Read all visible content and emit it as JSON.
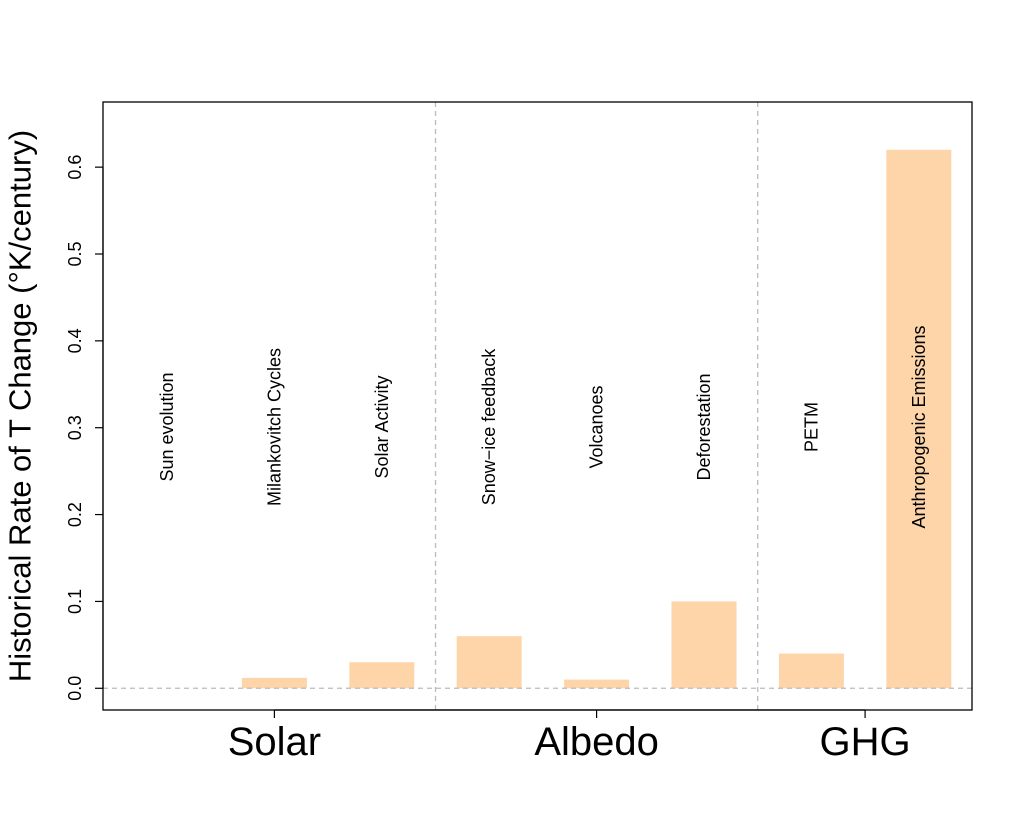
{
  "chart_data": {
    "type": "bar",
    "title": "",
    "xlabel": "",
    "ylabel": "Historical Rate of T Change (°K/century)",
    "ylim": [
      -0.025,
      0.675
    ],
    "yticks": [
      0.0,
      0.1,
      0.2,
      0.3,
      0.4,
      0.5,
      0.6
    ],
    "ytick_labels": [
      "0.0",
      "0.1",
      "0.2",
      "0.3",
      "0.4",
      "0.5",
      "0.6"
    ],
    "grid": false,
    "groups": [
      {
        "label": "Solar",
        "categories": [
          "Sun evolution",
          "Milankovitch Cycles",
          "Solar Activity"
        ]
      },
      {
        "label": "Albedo",
        "categories": [
          "Snow−ice feedback",
          "Volcanoes",
          "Deforestation"
        ]
      },
      {
        "label": "GHG",
        "categories": [
          "PETM",
          "Anthropogenic Emissions"
        ]
      }
    ],
    "categories": [
      "Sun evolution",
      "Milankovitch Cycles",
      "Solar Activity",
      "Snow−ice feedback",
      "Volcanoes",
      "Deforestation",
      "PETM",
      "Anthropogenic Emissions"
    ],
    "values": [
      0.0,
      0.012,
      0.03,
      0.06,
      0.01,
      0.1,
      0.04,
      0.62
    ],
    "bar_color": "#FDD5A9",
    "reference_line": 0.0
  }
}
